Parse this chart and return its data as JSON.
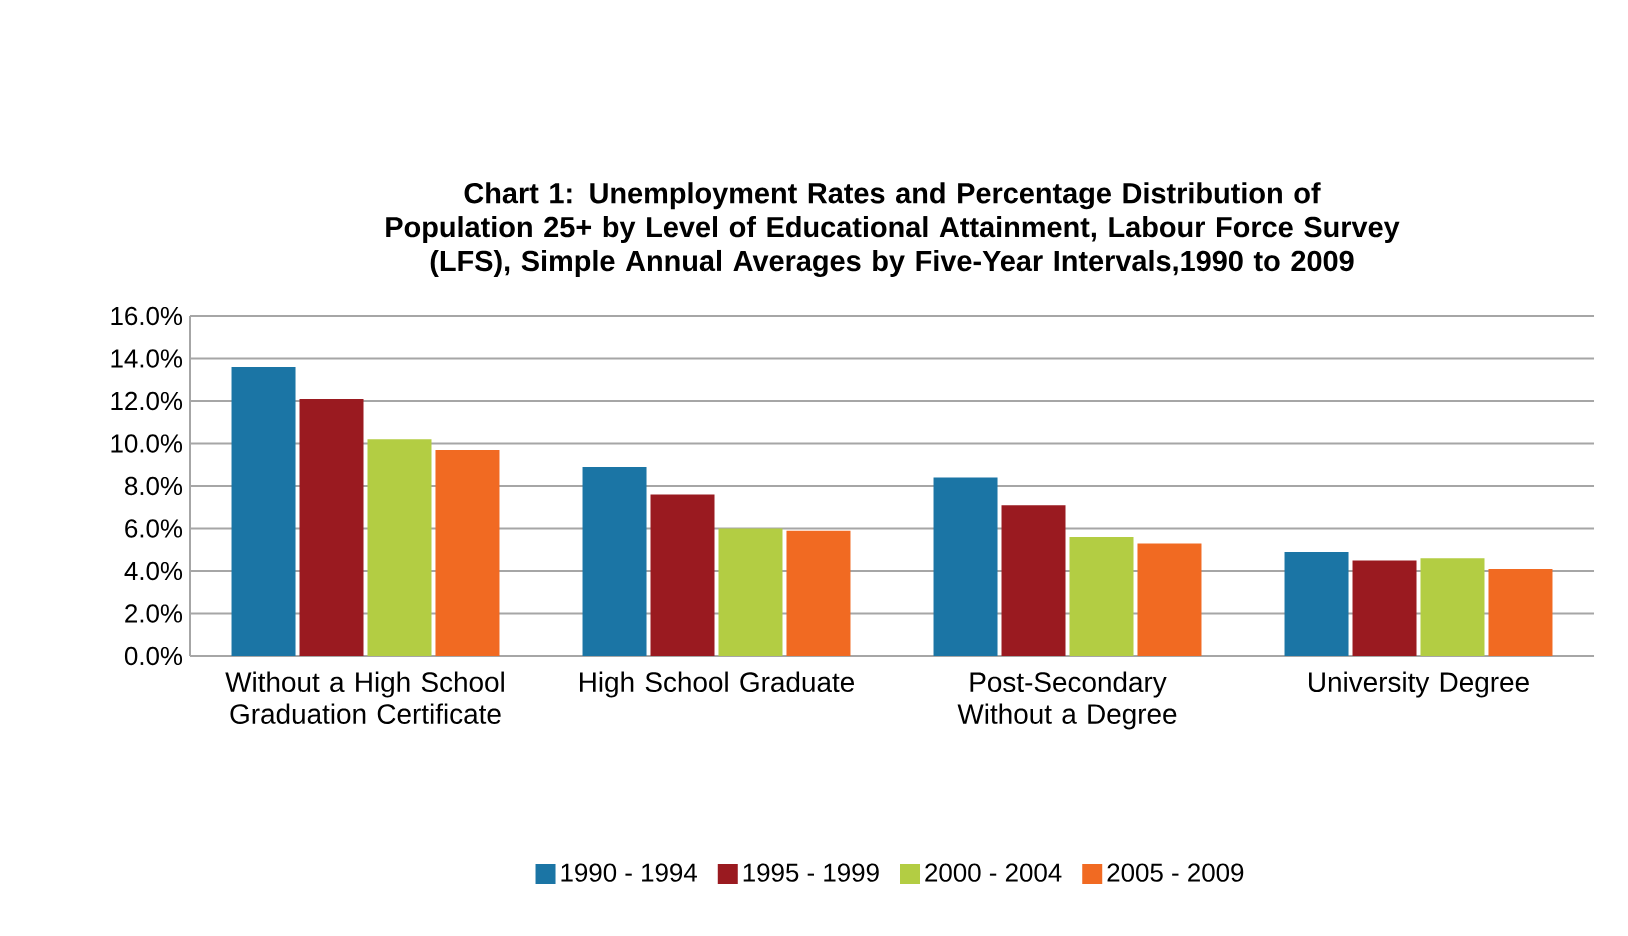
{
  "chart_data": {
    "type": "bar",
    "title": "Chart 1: Unemployment Rates and Percentage Distribution of Population 25+ by Level of Educational Attainment, Labour Force Survey (LFS), Simple Annual Averages by Five-Year Intervals,1990 to 2009",
    "categories": [
      "Without a High School Graduation Certificate",
      "High School Graduate",
      "Post-Secondary Without a Degree",
      "University Degree"
    ],
    "series": [
      {
        "name": "1990 - 1994",
        "color": "#1b75a5",
        "values": [
          13.6,
          8.9,
          8.4,
          4.9
        ]
      },
      {
        "name": "1995 - 1999",
        "color": "#9a1a20",
        "values": [
          12.1,
          7.6,
          7.1,
          4.5
        ]
      },
      {
        "name": "2000 - 2004",
        "color": "#b3cd43",
        "values": [
          10.2,
          6.0,
          5.6,
          4.6
        ]
      },
      {
        "name": "2005 - 2009",
        "color": "#f16a22",
        "values": [
          9.7,
          5.9,
          5.3,
          4.1
        ]
      }
    ],
    "ylim": [
      0,
      16
    ],
    "yticks": [
      {
        "value": 0,
        "label": "0.0%"
      },
      {
        "value": 2,
        "label": "2.0%"
      },
      {
        "value": 4,
        "label": "4.0%"
      },
      {
        "value": 6,
        "label": "6.0%"
      },
      {
        "value": 8,
        "label": "8.0%"
      },
      {
        "value": 10,
        "label": "10.0%"
      },
      {
        "value": 12,
        "label": "12.0%"
      },
      {
        "value": 14,
        "label": "14.0%"
      },
      {
        "value": 16,
        "label": "16.0%"
      }
    ],
    "grid": "y",
    "legend": "bottom"
  }
}
